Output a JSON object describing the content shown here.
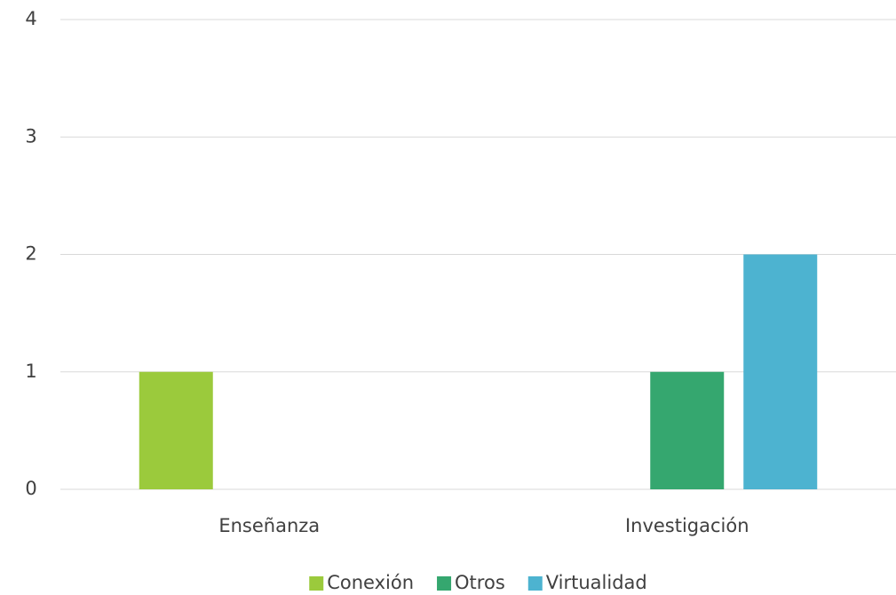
{
  "chart_data": {
    "type": "bar",
    "categories": [
      "Enseñanza",
      "Investigación"
    ],
    "series": [
      {
        "name": "Conexión",
        "color": "#9bca3c",
        "values": [
          1,
          0
        ]
      },
      {
        "name": "Otros",
        "color": "#35a76f",
        "values": [
          0,
          1
        ]
      },
      {
        "name": "Virtualidad",
        "color": "#4db3d0",
        "values": [
          0,
          2
        ]
      }
    ],
    "ylim": [
      0,
      4
    ],
    "yticks": [
      0,
      1,
      2,
      3,
      4
    ],
    "grid": true,
    "legend": "bottom"
  }
}
